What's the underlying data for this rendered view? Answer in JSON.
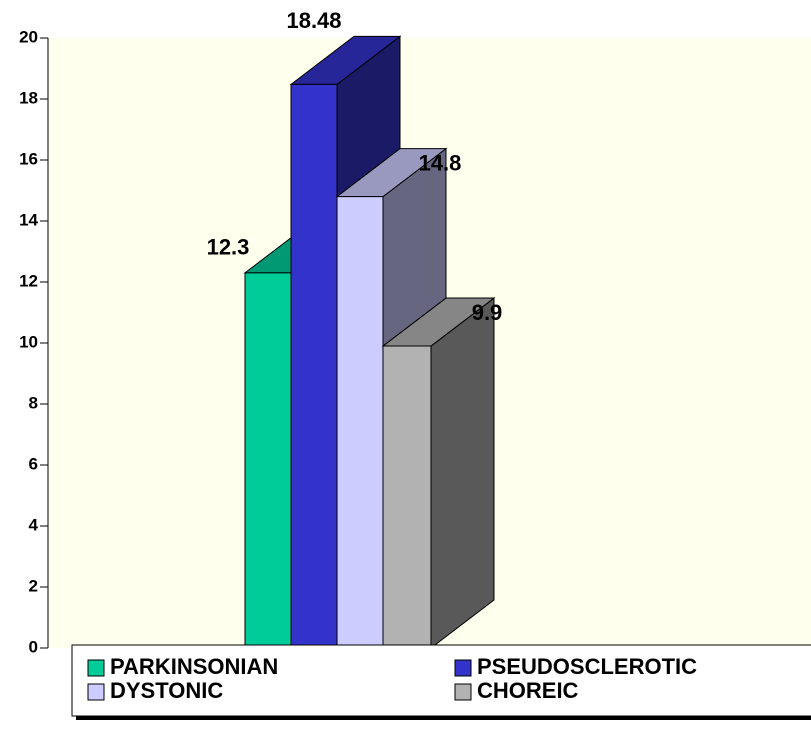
{
  "chart_data": {
    "type": "bar",
    "categories": [
      null
    ],
    "series": [
      {
        "name": "PARKINSONIAN",
        "color": "#00cc99",
        "values": [
          12.3
        ]
      },
      {
        "name": "PSEUDOSCLEROTIC",
        "color": "#3333cc",
        "values": [
          18.48
        ]
      },
      {
        "name": "DYSTONIC",
        "color": "#ccccff",
        "values": [
          14.8
        ]
      },
      {
        "name": "CHOREIC",
        "color": "#b2b2b2",
        "values": [
          9.9
        ]
      }
    ],
    "ylim": [
      0,
      20
    ],
    "yticks": [
      0,
      2,
      4,
      6,
      8,
      10,
      12,
      14,
      16,
      18,
      20
    ],
    "legend": "bottom",
    "background": "#ffffee"
  }
}
